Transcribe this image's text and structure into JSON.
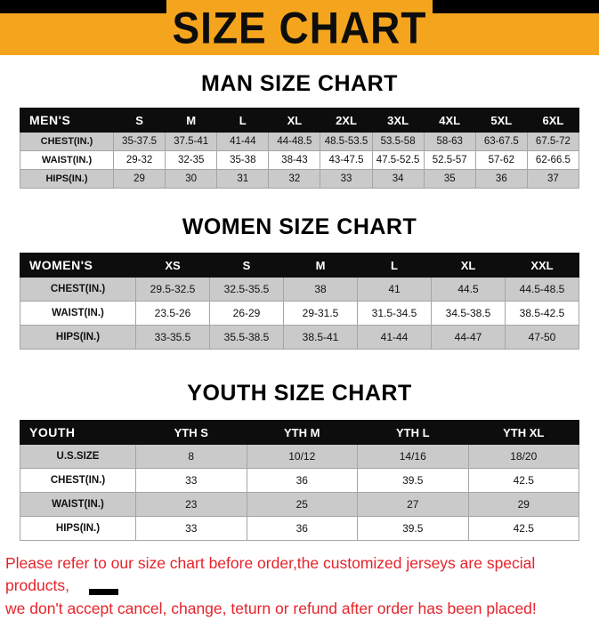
{
  "banner": {
    "title": "SIZE CHART"
  },
  "sections": [
    {
      "id": "men",
      "heading": "MAN SIZE CHART",
      "table": {
        "header": [
          "MEN'S",
          "S",
          "M",
          "L",
          "XL",
          "2XL",
          "3XL",
          "4XL",
          "5XL",
          "6XL"
        ],
        "rows": [
          [
            "CHEST(IN.)",
            "35-37.5",
            "37.5-41",
            "41-44",
            "44-48.5",
            "48.5-53.5",
            "53.5-58",
            "58-63",
            "63-67.5",
            "67.5-72"
          ],
          [
            "WAIST(IN.)",
            "29-32",
            "32-35",
            "35-38",
            "38-43",
            "43-47.5",
            "47.5-52.5",
            "52.5-57",
            "57-62",
            "62-66.5"
          ],
          [
            "HIPS(IN.)",
            "29",
            "30",
            "31",
            "32",
            "33",
            "34",
            "35",
            "36",
            "37"
          ]
        ]
      }
    },
    {
      "id": "women",
      "heading": "WOMEN SIZE CHART",
      "table": {
        "header": [
          "WOMEN'S",
          "XS",
          "S",
          "M",
          "L",
          "XL",
          "XXL"
        ],
        "rows": [
          [
            "CHEST(IN.)",
            "29.5-32.5",
            "32.5-35.5",
            "38",
            "41",
            "44.5",
            "44.5-48.5"
          ],
          [
            "WAIST(IN.)",
            "23.5-26",
            "26-29",
            "29-31.5",
            "31.5-34.5",
            "34.5-38.5",
            "38.5-42.5"
          ],
          [
            "HIPS(IN.)",
            "33-35.5",
            "35.5-38.5",
            "38.5-41",
            "41-44",
            "44-47",
            "47-50"
          ]
        ]
      }
    },
    {
      "id": "youth",
      "heading": "YOUTH SIZE CHART",
      "table": {
        "header": [
          "YOUTH",
          "YTH S",
          "YTH M",
          "YTH L",
          "YTH XL"
        ],
        "rows": [
          [
            "U.S.SIZE",
            "8",
            "10/12",
            "14/16",
            "18/20"
          ],
          [
            "CHEST(IN.)",
            "33",
            "36",
            "39.5",
            "42.5"
          ],
          [
            "WAIST(IN.)",
            "23",
            "25",
            "27",
            "29"
          ],
          [
            "HIPS(IN.)",
            "33",
            "36",
            "39.5",
            "42.5"
          ]
        ]
      }
    }
  ],
  "footer": {
    "line1": "Please refer to our size chart before order,the customized jerseys are special products,",
    "line2": "we don't accept cancel, change, teturn or refund after order has been placed!"
  },
  "colors": {
    "banner_orange": "#F5A51D",
    "table_header_black": "#0d0d0d",
    "row_gray": "#CACACA",
    "note_red": "#E5232B"
  }
}
